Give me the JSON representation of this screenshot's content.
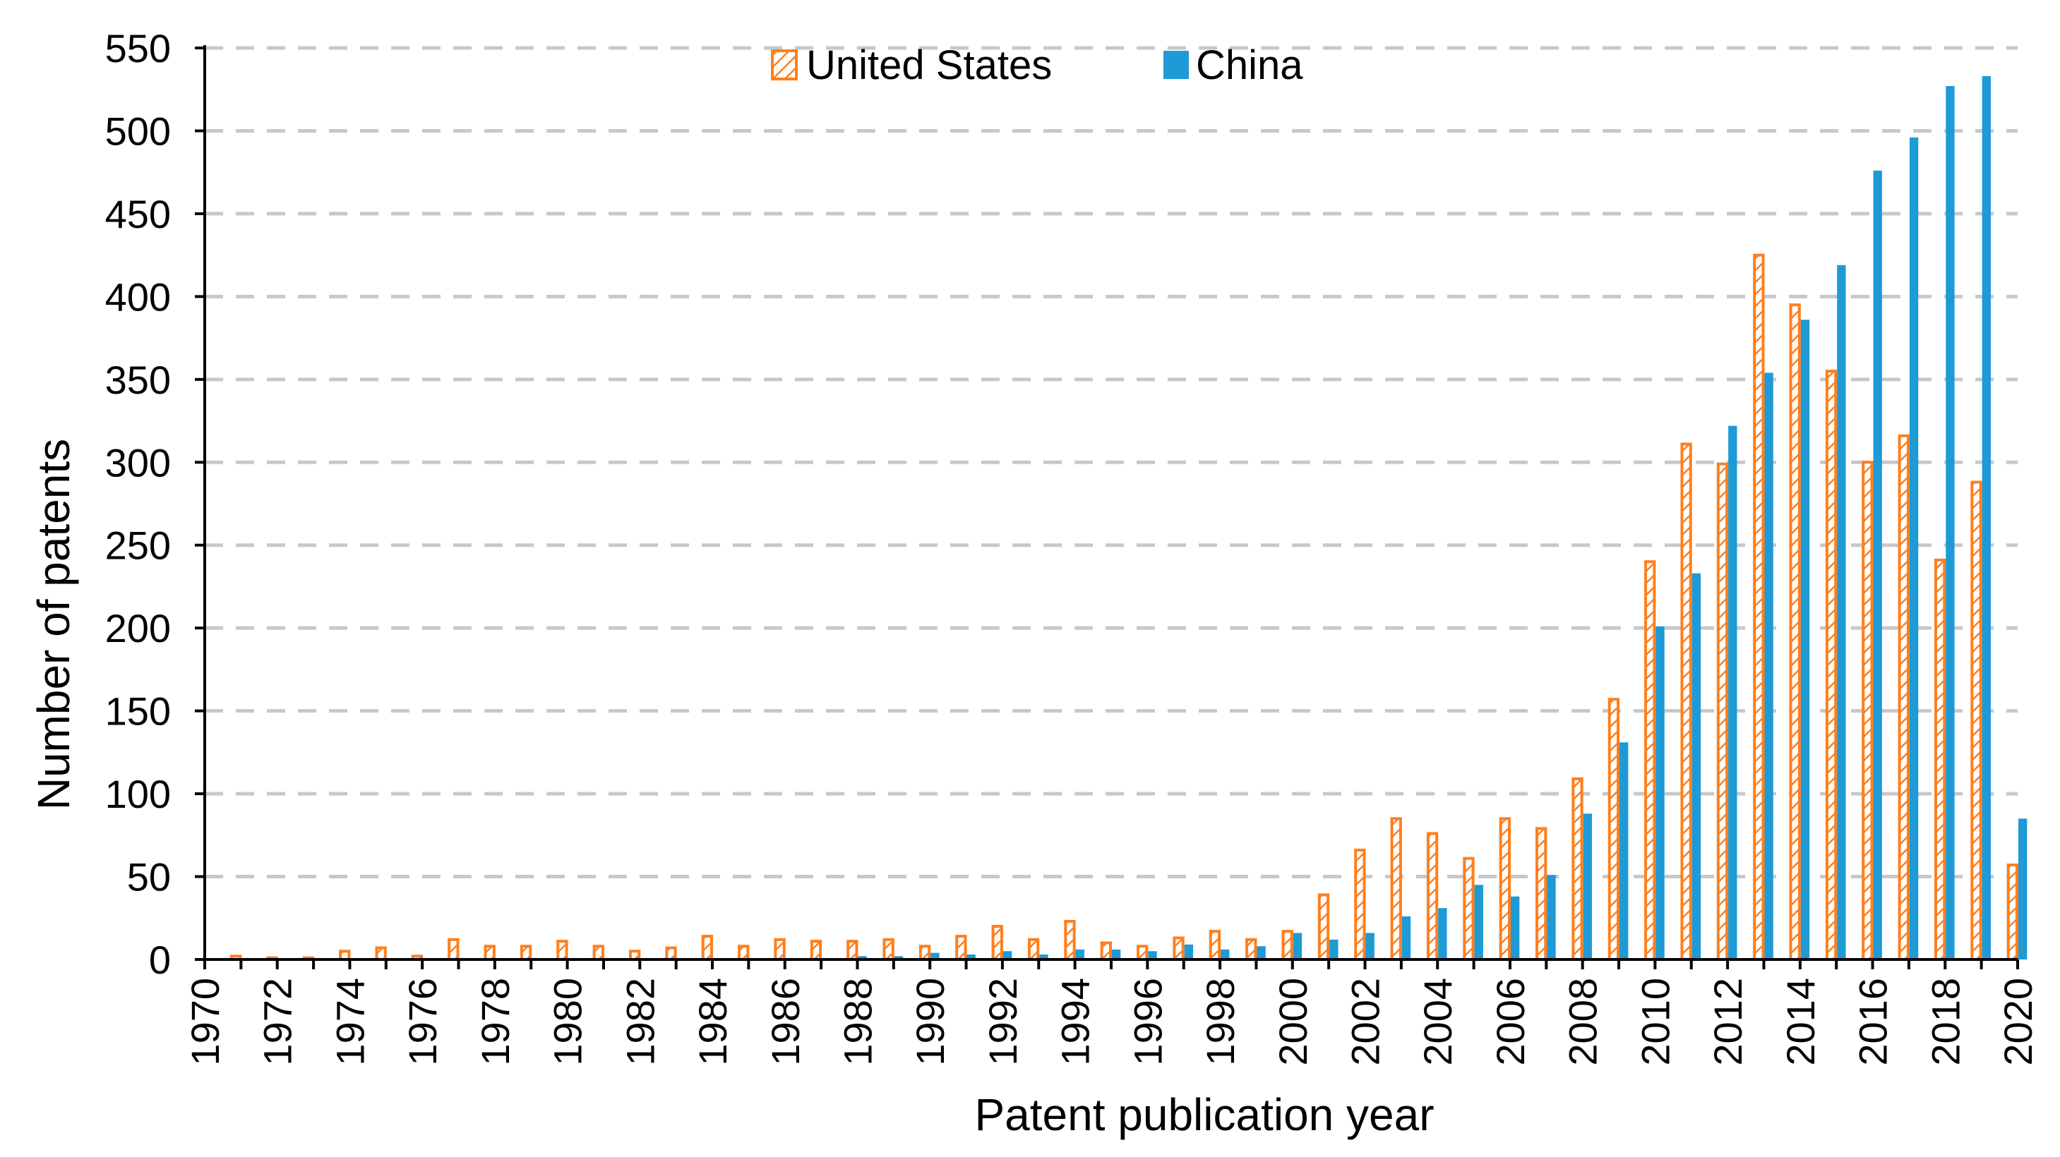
{
  "chart_data": {
    "type": "bar",
    "title": "",
    "xlabel": "Patent publication year",
    "ylabel": "Number of patents",
    "ylim": [
      0,
      550
    ],
    "y_ticks": [
      0,
      50,
      100,
      150,
      200,
      250,
      300,
      350,
      400,
      450,
      500,
      550
    ],
    "x_range": [
      1970,
      2020
    ],
    "x_tick_labels": [
      "1970",
      "1972",
      "1974",
      "1976",
      "1978",
      "1980",
      "1982",
      "1984",
      "1986",
      "1988",
      "1990",
      "1992",
      "1994",
      "1996",
      "1998",
      "2000",
      "2002",
      "2004",
      "2006",
      "2008",
      "2010",
      "2012",
      "2014",
      "2016",
      "2018",
      "2020"
    ],
    "grid": "horizontal dashed",
    "legend_position": "top-center",
    "categories": [
      1970,
      1971,
      1972,
      1973,
      1974,
      1975,
      1976,
      1977,
      1978,
      1979,
      1980,
      1981,
      1982,
      1983,
      1984,
      1985,
      1986,
      1987,
      1988,
      1989,
      1990,
      1991,
      1992,
      1993,
      1994,
      1995,
      1996,
      1997,
      1998,
      1999,
      2000,
      2001,
      2002,
      2003,
      2004,
      2005,
      2006,
      2007,
      2008,
      2009,
      2010,
      2011,
      2012,
      2013,
      2014,
      2015,
      2016,
      2017,
      2018,
      2019,
      2020
    ],
    "series": [
      {
        "name": "United States",
        "color": "#ff7f1e",
        "style": "hatched",
        "values": [
          0,
          2,
          1,
          1,
          5,
          7,
          2,
          12,
          8,
          8,
          11,
          8,
          5,
          7,
          14,
          8,
          12,
          11,
          11,
          12,
          8,
          14,
          20,
          12,
          23,
          10,
          8,
          13,
          17,
          12,
          17,
          39,
          66,
          85,
          76,
          61,
          85,
          79,
          109,
          157,
          240,
          311,
          299,
          425,
          395,
          355,
          300,
          316,
          241,
          288,
          57
        ]
      },
      {
        "name": "China",
        "color": "#1e9ad6",
        "style": "solid",
        "values": [
          0,
          0,
          0,
          0,
          0,
          0,
          0,
          0,
          0,
          0,
          0,
          0,
          0,
          0,
          0,
          0,
          0,
          0,
          2,
          2,
          4,
          3,
          5,
          3,
          6,
          6,
          5,
          9,
          6,
          8,
          16,
          12,
          16,
          26,
          31,
          45,
          38,
          51,
          88,
          131,
          201,
          233,
          322,
          354,
          386,
          419,
          476,
          496,
          527,
          533,
          85
        ]
      }
    ]
  }
}
